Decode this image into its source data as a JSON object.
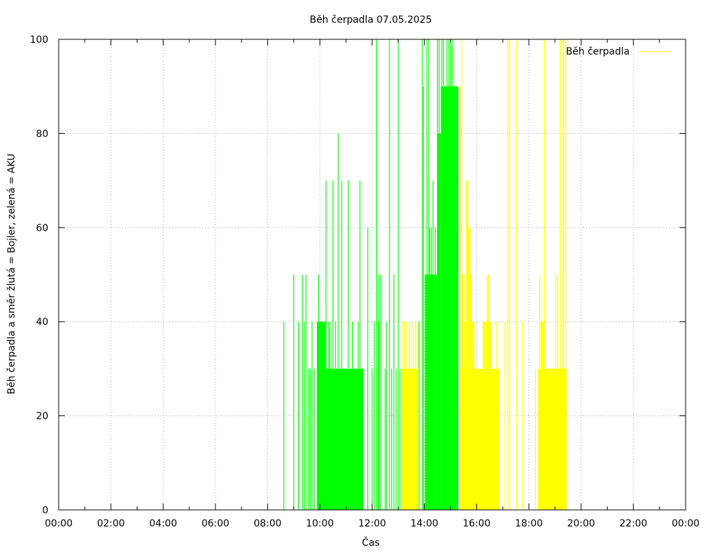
{
  "chart_data": {
    "type": "bar",
    "title": "Běh čerpadla 07.05.2025",
    "xlabel": "Čas",
    "ylabel": "Běh čerpadla a směr žlutá = Bojler, zelená = AKU",
    "xlim": [
      "00:00",
      "24:00"
    ],
    "ylim": [
      0,
      100
    ],
    "x_ticks": [
      "00:00",
      "02:00",
      "04:00",
      "06:00",
      "08:00",
      "10:00",
      "12:00",
      "14:00",
      "16:00",
      "18:00",
      "20:00",
      "22:00",
      "00:00"
    ],
    "y_ticks": [
      "0",
      "20",
      "40",
      "60",
      "80",
      "100"
    ],
    "grid": true,
    "legend": {
      "position": "top-right",
      "entries": [
        {
          "label": "Běh čerpadla",
          "color": "#ffff00"
        }
      ]
    },
    "colors": {
      "bojler": "#ffff00",
      "aku": "#00ff00"
    },
    "series": [
      {
        "name": "Bojler",
        "color": "#ffff00",
        "filled_blocks": [
          {
            "from": "13:07",
            "to": "13:46",
            "value": 30
          },
          {
            "from": "15:22",
            "to": "16:53",
            "value": 30
          },
          {
            "from": "18:22",
            "to": "19:27",
            "value": 30
          }
        ],
        "spikes": [
          {
            "time": "13:10",
            "value": 40
          },
          {
            "time": "13:15",
            "value": 40
          },
          {
            "time": "13:20",
            "value": 40
          },
          {
            "time": "13:25",
            "value": 40
          },
          {
            "time": "13:30",
            "value": 40
          },
          {
            "time": "13:35",
            "value": 40
          },
          {
            "time": "13:40",
            "value": 40
          },
          {
            "time": "13:45",
            "value": 40
          },
          {
            "time": "15:24",
            "value": 90
          },
          {
            "time": "15:26",
            "value": 100
          },
          {
            "time": "15:27",
            "value": 50
          },
          {
            "time": "15:29",
            "value": 50
          },
          {
            "time": "15:31",
            "value": 50
          },
          {
            "time": "15:33",
            "value": 40
          },
          {
            "time": "15:35",
            "value": 40
          },
          {
            "time": "15:37",
            "value": 70
          },
          {
            "time": "15:38",
            "value": 70
          },
          {
            "time": "15:40",
            "value": 70
          },
          {
            "time": "15:42",
            "value": 60
          },
          {
            "time": "15:43",
            "value": 60
          },
          {
            "time": "15:45",
            "value": 60
          },
          {
            "time": "15:47",
            "value": 50
          },
          {
            "time": "15:48",
            "value": 50
          },
          {
            "time": "15:50",
            "value": 40
          },
          {
            "time": "15:52",
            "value": 40
          },
          {
            "time": "15:54",
            "value": 40
          },
          {
            "time": "16:15",
            "value": 40
          },
          {
            "time": "16:17",
            "value": 40
          },
          {
            "time": "16:19",
            "value": 40
          },
          {
            "time": "16:21",
            "value": 40
          },
          {
            "time": "16:23",
            "value": 40
          },
          {
            "time": "16:25",
            "value": 50
          },
          {
            "time": "16:27",
            "value": 50
          },
          {
            "time": "16:29",
            "value": 40
          },
          {
            "time": "16:31",
            "value": 40
          },
          {
            "time": "16:33",
            "value": 40
          },
          {
            "time": "16:45",
            "value": 40
          },
          {
            "time": "17:05",
            "value": 40
          },
          {
            "time": "17:12",
            "value": 100
          },
          {
            "time": "17:16",
            "value": 100
          },
          {
            "time": "17:32",
            "value": 100
          },
          {
            "time": "17:45",
            "value": 40
          },
          {
            "time": "18:15",
            "value": 30
          },
          {
            "time": "18:22",
            "value": 30
          },
          {
            "time": "18:25",
            "value": 50
          },
          {
            "time": "18:28",
            "value": 40
          },
          {
            "time": "18:30",
            "value": 40
          },
          {
            "time": "18:32",
            "value": 40
          },
          {
            "time": "18:34",
            "value": 40
          },
          {
            "time": "18:36",
            "value": 100
          },
          {
            "time": "19:02",
            "value": 50
          },
          {
            "time": "19:06",
            "value": 50
          },
          {
            "time": "19:12",
            "value": 100
          },
          {
            "time": "19:16",
            "value": 100
          },
          {
            "time": "19:20",
            "value": 100
          },
          {
            "time": "19:25",
            "value": 100
          }
        ]
      },
      {
        "name": "AKU",
        "color": "#00ff00",
        "filled_blocks": [
          {
            "from": "09:53",
            "to": "10:13",
            "value": 40
          },
          {
            "from": "10:13",
            "to": "11:40",
            "value": 30
          },
          {
            "from": "14:02",
            "to": "14:29",
            "value": 50
          },
          {
            "from": "14:29",
            "to": "14:38",
            "value": 80
          },
          {
            "from": "14:38",
            "to": "15:18",
            "value": 90
          }
        ],
        "spikes": [
          {
            "time": "08:37",
            "value": 40
          },
          {
            "time": "09:00",
            "value": 50
          },
          {
            "time": "09:11",
            "value": 40
          },
          {
            "time": "09:20",
            "value": 50
          },
          {
            "time": "09:24",
            "value": 40
          },
          {
            "time": "09:28",
            "value": 50
          },
          {
            "time": "09:34",
            "value": 30
          },
          {
            "time": "09:38",
            "value": 30
          },
          {
            "time": "09:42",
            "value": 40
          },
          {
            "time": "09:47",
            "value": 30
          },
          {
            "time": "09:57",
            "value": 50
          },
          {
            "time": "10:05",
            "value": 40
          },
          {
            "time": "10:10",
            "value": 40
          },
          {
            "time": "10:14",
            "value": 70
          },
          {
            "time": "10:20",
            "value": 40
          },
          {
            "time": "10:23",
            "value": 40
          },
          {
            "time": "10:30",
            "value": 70
          },
          {
            "time": "10:36",
            "value": 40
          },
          {
            "time": "10:42",
            "value": 80
          },
          {
            "time": "10:50",
            "value": 70
          },
          {
            "time": "11:05",
            "value": 70
          },
          {
            "time": "11:15",
            "value": 40
          },
          {
            "time": "11:28",
            "value": 40
          },
          {
            "time": "11:32",
            "value": 70
          },
          {
            "time": "11:50",
            "value": 60
          },
          {
            "time": "12:00",
            "value": 30
          },
          {
            "time": "12:05",
            "value": 40
          },
          {
            "time": "12:10",
            "value": 100
          },
          {
            "time": "12:14",
            "value": 50
          },
          {
            "time": "12:16",
            "value": 40
          },
          {
            "time": "12:20",
            "value": 50
          },
          {
            "time": "12:30",
            "value": 30
          },
          {
            "time": "12:33",
            "value": 40
          },
          {
            "time": "12:40",
            "value": 100
          },
          {
            "time": "12:45",
            "value": 30
          },
          {
            "time": "12:50",
            "value": 50
          },
          {
            "time": "12:55",
            "value": 30
          },
          {
            "time": "13:00",
            "value": 100
          },
          {
            "time": "13:04",
            "value": 30
          },
          {
            "time": "13:48",
            "value": 40
          },
          {
            "time": "13:55",
            "value": 100
          },
          {
            "time": "13:58",
            "value": 90
          },
          {
            "time": "14:02",
            "value": 50
          },
          {
            "time": "14:06",
            "value": 100
          },
          {
            "time": "14:10",
            "value": 100
          },
          {
            "time": "14:12",
            "value": 60
          },
          {
            "time": "14:16",
            "value": 60
          },
          {
            "time": "14:20",
            "value": 70
          },
          {
            "time": "14:25",
            "value": 60
          },
          {
            "time": "14:30",
            "value": 100
          },
          {
            "time": "14:34",
            "value": 100
          },
          {
            "time": "14:40",
            "value": 100
          },
          {
            "time": "14:44",
            "value": 100
          },
          {
            "time": "14:48",
            "value": 90
          },
          {
            "time": "14:52",
            "value": 100
          },
          {
            "time": "14:56",
            "value": 100
          },
          {
            "time": "15:00",
            "value": 100
          },
          {
            "time": "15:04",
            "value": 100
          },
          {
            "time": "15:08",
            "value": 90
          },
          {
            "time": "15:12",
            "value": 90
          },
          {
            "time": "15:16",
            "value": 90
          }
        ]
      }
    ]
  }
}
